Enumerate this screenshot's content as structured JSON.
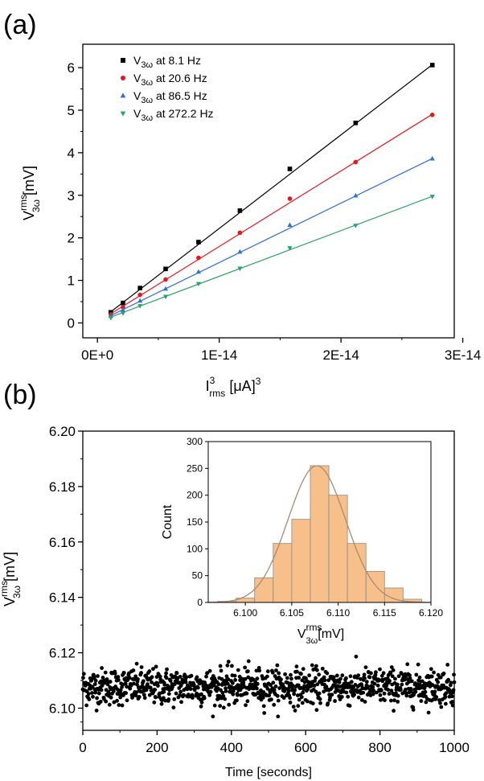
{
  "panels": {
    "a": {
      "label": "(a)"
    },
    "b": {
      "label": "(b)"
    }
  },
  "chart_data": [
    {
      "id": "a",
      "type": "scatter",
      "xlabel": {
        "base": "I",
        "sup": "3",
        "sub": "rms",
        "unit": " [μA]",
        "unit_sup": "3"
      },
      "ylabel": {
        "base": "V",
        "sup": "rms",
        "sub": "3ω",
        "unit": " [mV]"
      },
      "xlim": [
        -1.2e-15,
        2.93e-14
      ],
      "ylim": [
        -0.35,
        6.55
      ],
      "xticks": [
        0,
        1e-14,
        2e-14,
        3e-14
      ],
      "xtick_labels": [
        "0E+0",
        "1E-14",
        "2E-14",
        "3E-14"
      ],
      "yticks": [
        0,
        1,
        2,
        3,
        4,
        5,
        6
      ],
      "ytick_labels": [
        "0",
        "1",
        "2",
        "3",
        "4",
        "5",
        "6"
      ],
      "legend_position": "top-left",
      "fit_lines": true,
      "x": [
        1.1e-15,
        2.1e-15,
        3.5e-15,
        5.6e-15,
        8.3e-15,
        1.17e-14,
        1.58e-14,
        2.12e-14,
        2.75e-14
      ],
      "series": [
        {
          "name_base": "V",
          "name_sub": "3ω",
          "name_rest": " at 8.1 Hz",
          "color": "#000000",
          "marker": "square",
          "values": [
            0.25,
            0.47,
            0.82,
            1.27,
            1.9,
            2.64,
            3.62,
            4.7,
            6.06
          ],
          "fit": [
            0.02,
            220000000000000.0
          ]
        },
        {
          "name_base": "V",
          "name_sub": "3ω",
          "name_rest": " at 20.6 Hz",
          "color": "#e8161b",
          "marker": "circle",
          "values": [
            0.2,
            0.37,
            0.66,
            1.02,
            1.53,
            2.12,
            2.92,
            3.78,
            4.89
          ],
          "fit": [
            0.02,
            177600000000000.0
          ]
        },
        {
          "name_base": "V",
          "name_sub": "3ω",
          "name_rest": " at 86.5 Hz",
          "color": "#2f6fd6",
          "marker": "triangle-up",
          "values": [
            0.16,
            0.3,
            0.52,
            0.8,
            1.2,
            1.67,
            2.3,
            2.99,
            3.86
          ],
          "fit": [
            0.02,
            139800000000000.0
          ]
        },
        {
          "name_base": "V",
          "name_sub": "3ω",
          "name_rest": " at 272.2 Hz",
          "color": "#2aa36b",
          "marker": "triangle-down",
          "values": [
            0.12,
            0.23,
            0.4,
            0.62,
            0.92,
            1.28,
            1.76,
            2.29,
            2.97
          ],
          "fit": [
            0.02,
            107500000000000.0
          ]
        }
      ]
    },
    {
      "id": "b",
      "type": "scatter",
      "xlabel": {
        "base": "Time [seconds]"
      },
      "ylabel": {
        "base": "V",
        "sup": "rms",
        "sub": "3ω",
        "unit": " [mV]"
      },
      "xlim": [
        0,
        1000
      ],
      "ylim": [
        6.092,
        6.2
      ],
      "xticks": [
        0,
        200,
        400,
        600,
        800,
        1000
      ],
      "xtick_labels": [
        "0",
        "200",
        "400",
        "600",
        "800",
        "1000"
      ],
      "yticks": [
        6.1,
        6.12,
        6.14,
        6.16,
        6.18,
        6.2
      ],
      "ytick_labels": [
        "6.10",
        "6.12",
        "6.14",
        "6.16",
        "6.18",
        "6.20"
      ],
      "series": [
        {
          "color": "#000000",
          "marker": "circle",
          "n_points": 1000,
          "mean": 6.1078,
          "std": 0.0033,
          "x_range": [
            0,
            1000
          ],
          "y_clip": [
            6.097,
            6.119
          ]
        }
      ]
    },
    {
      "id": "b-inset",
      "type": "bar",
      "xlabel": {
        "base": "V",
        "sup": "rms",
        "sub": "3ω",
        "unit": "[mV]"
      },
      "ylabel": {
        "base": "Count"
      },
      "xlim": [
        6.096,
        6.12
      ],
      "ylim": [
        0,
        300
      ],
      "xticks": [
        6.1,
        6.105,
        6.11,
        6.115,
        6.12
      ],
      "xtick_labels": [
        "6.100",
        "6.105",
        "6.110",
        "6.115",
        "6.120"
      ],
      "yticks": [
        0,
        50,
        100,
        150,
        200,
        250,
        300
      ],
      "ytick_labels": [
        "0",
        "50",
        "100",
        "150",
        "200",
        "250",
        "300"
      ],
      "bin_edges": [
        6.097,
        6.099,
        6.101,
        6.103,
        6.105,
        6.107,
        6.109,
        6.111,
        6.113,
        6.115,
        6.117,
        6.119
      ],
      "counts": [
        2,
        8,
        46,
        110,
        155,
        255,
        200,
        110,
        58,
        27,
        6
      ],
      "bar_color": "#f7c08a",
      "bar_edge": "#8a8a8a",
      "fit_curve": {
        "type": "gaussian",
        "amplitude": 255,
        "mean": 6.1077,
        "sigma": 0.0031,
        "color": "#a88b6e"
      }
    }
  ]
}
